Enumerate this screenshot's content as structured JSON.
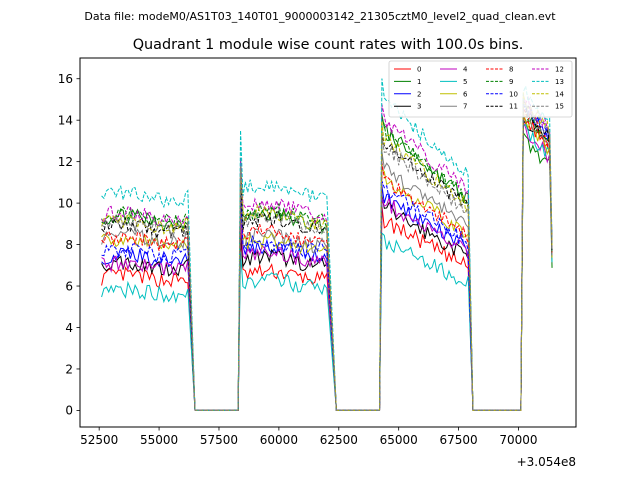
{
  "chart_data": {
    "type": "line",
    "suptitle": "Data file: modeM0/AS1T03_140T01_9000003142_21305cztM0_level2_quad_clean.evt",
    "title": "Quadrant 1 module wise count rates with 100.0s bins.",
    "xlabel": "",
    "ylabel": "",
    "x_offset_label": "+3.054e8",
    "xlim": [
      51700,
      72400
    ],
    "ylim": [
      -0.8,
      17.0
    ],
    "x_ticks": [
      52500,
      55000,
      57500,
      60000,
      62500,
      65000,
      67500,
      70000
    ],
    "x_tick_labels": [
      "52500",
      "55000",
      "57500",
      "60000",
      "62500",
      "65000",
      "67500",
      "70000"
    ],
    "y_ticks": [
      0,
      2,
      4,
      6,
      8,
      10,
      12,
      14,
      16
    ],
    "y_tick_labels": [
      "0",
      "2",
      "4",
      "6",
      "8",
      "10",
      "12",
      "14",
      "16"
    ],
    "bin_width": 100,
    "segments": [
      {
        "start": 52600,
        "end": 56200
      },
      {
        "start": 58400,
        "end": 62000
      },
      {
        "start": 64300,
        "end": 67900
      },
      {
        "start": 70200,
        "end": 71400
      }
    ],
    "gaps": [
      {
        "start": 56500,
        "end": 58300
      },
      {
        "start": 62400,
        "end": 64200
      },
      {
        "start": 68100,
        "end": 70100
      }
    ],
    "legend_position": "upper right",
    "series": [
      {
        "name": "0",
        "color": "#ff0000",
        "dash": "solid",
        "levels": [
          6.4,
          6.5,
          7.2,
          13.5
        ]
      },
      {
        "name": "1",
        "color": "#008000",
        "dash": "solid",
        "levels": [
          9.2,
          9.2,
          10.6,
          12.5
        ]
      },
      {
        "name": "2",
        "color": "#0000ff",
        "dash": "solid",
        "levels": [
          7.4,
          7.7,
          8.1,
          14.0
        ]
      },
      {
        "name": "3",
        "color": "#000000",
        "dash": "solid",
        "levels": [
          7.0,
          7.2,
          7.7,
          13.5
        ]
      },
      {
        "name": "4",
        "color": "#bf00bf",
        "dash": "solid",
        "levels": [
          7.0,
          7.4,
          7.9,
          13.0
        ]
      },
      {
        "name": "5",
        "color": "#00bfbf",
        "dash": "solid",
        "levels": [
          5.7,
          6.1,
          6.4,
          13.0
        ]
      },
      {
        "name": "6",
        "color": "#bfbf00",
        "dash": "solid",
        "levels": [
          8.1,
          8.0,
          8.8,
          13.4
        ]
      },
      {
        "name": "7",
        "color": "#808080",
        "dash": "solid",
        "levels": [
          8.3,
          8.2,
          9.2,
          13.6
        ]
      },
      {
        "name": "8",
        "color": "#ff0000",
        "dash": "dashed",
        "levels": [
          8.2,
          8.4,
          8.8,
          13.8
        ]
      },
      {
        "name": "9",
        "color": "#008000",
        "dash": "dashed",
        "levels": [
          9.3,
          9.4,
          10.6,
          13.8
        ]
      },
      {
        "name": "10",
        "color": "#0000ff",
        "dash": "dashed",
        "levels": [
          7.6,
          7.9,
          8.4,
          14.1
        ]
      },
      {
        "name": "11",
        "color": "#000000",
        "dash": "dashed",
        "levels": [
          8.8,
          9.0,
          10.2,
          14.0
        ]
      },
      {
        "name": "12",
        "color": "#bf00bf",
        "dash": "dashed",
        "levels": [
          9.4,
          9.7,
          11.0,
          14.4
        ]
      },
      {
        "name": "13",
        "color": "#00bfbf",
        "dash": "dashed",
        "levels": [
          10.3,
          10.6,
          11.8,
          14.7
        ]
      },
      {
        "name": "14",
        "color": "#bfbf00",
        "dash": "dashed",
        "levels": [
          9.0,
          9.3,
          10.3,
          14.3
        ]
      },
      {
        "name": "15",
        "color": "#808080",
        "dash": "dashed",
        "levels": [
          8.9,
          9.0,
          10.0,
          14.0
        ]
      }
    ]
  }
}
